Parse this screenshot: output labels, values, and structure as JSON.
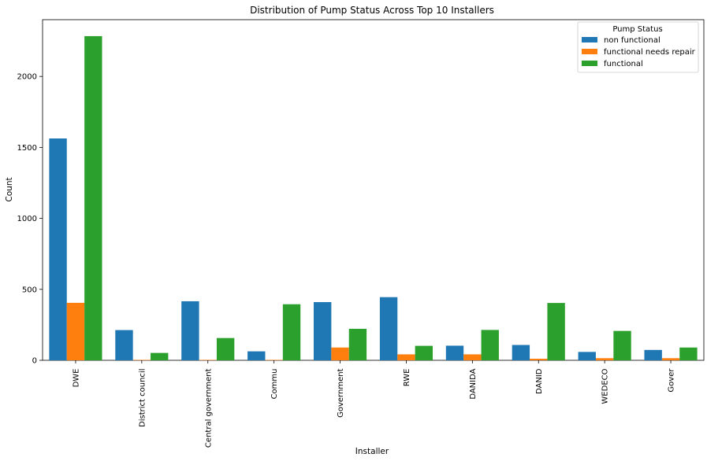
{
  "chart_data": {
    "type": "bar",
    "title": "Distribution of Pump Status Across Top 10 Installers",
    "xlabel": "Installer",
    "ylabel": "Count",
    "categories": [
      "DWE",
      "District council",
      "Central government",
      "Commu",
      "Government",
      "RWE",
      "DANIDA",
      "DANID",
      "WEDECO",
      "Gover"
    ],
    "series": [
      {
        "name": "non functional",
        "color": "#1f77b4",
        "values": [
          1563,
          213,
          416,
          63,
          410,
          445,
          103,
          108,
          59,
          73
        ]
      },
      {
        "name": "functional needs repair",
        "color": "#ff7f0e",
        "values": [
          405,
          3,
          3,
          3,
          90,
          42,
          42,
          11,
          15,
          15
        ]
      },
      {
        "name": "functional",
        "color": "#2ca02c",
        "values": [
          2284,
          52,
          157,
          395,
          222,
          102,
          214,
          404,
          207,
          90
        ]
      }
    ],
    "yticks": [
      0,
      500,
      1000,
      1500,
      2000
    ],
    "ylim": [
      0,
      2400
    ],
    "legend": {
      "title": "Pump Status",
      "placement": "top-right"
    },
    "grid": false
  }
}
